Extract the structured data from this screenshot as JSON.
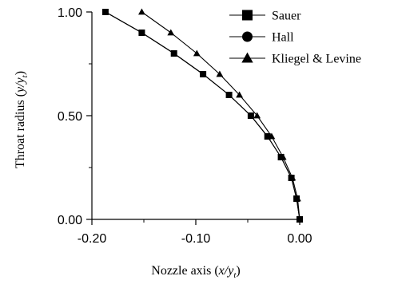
{
  "chart_data": {
    "type": "line",
    "xlabel": {
      "text": "Nozzle axis (",
      "math": "x/y",
      "sub": "t",
      "tail": ")"
    },
    "ylabel": {
      "text": "Throat radius (",
      "math": "y/y",
      "sub": "t",
      "tail": ")"
    },
    "xlim": [
      -0.2,
      0.0
    ],
    "ylim": [
      0.0,
      1.0
    ],
    "xticks": [
      -0.2,
      -0.1,
      0.0
    ],
    "xtick_labels": [
      "-0.20",
      "-0.10",
      "0.00"
    ],
    "yticks": [
      0.0,
      0.5,
      1.0
    ],
    "ytick_labels": [
      "0.00",
      "0.50",
      "1.00"
    ],
    "legend_position": "top-right",
    "grid": false,
    "series": [
      {
        "name": "Sauer",
        "marker": "square",
        "x": [
          -0.187,
          -0.152,
          -0.121,
          -0.093,
          -0.068,
          -0.047,
          -0.031,
          -0.018,
          -0.008,
          -0.003,
          0.0
        ],
        "y": [
          1.0,
          0.9,
          0.8,
          0.7,
          0.6,
          0.5,
          0.4,
          0.3,
          0.2,
          0.1,
          0.0
        ]
      },
      {
        "name": "Hall",
        "marker": "circle",
        "x": [
          -0.187,
          -0.152,
          -0.121,
          -0.093,
          -0.068,
          -0.047,
          -0.031,
          -0.018,
          -0.008,
          -0.003,
          0.0
        ],
        "y": [
          1.0,
          0.9,
          0.8,
          0.7,
          0.6,
          0.5,
          0.4,
          0.3,
          0.2,
          0.1,
          0.0
        ]
      },
      {
        "name": "Kliegel & Levine",
        "marker": "triangle",
        "x": [
          -0.152,
          -0.124,
          -0.099,
          -0.077,
          -0.058,
          -0.041,
          -0.027,
          -0.016,
          -0.007,
          -0.002,
          0.0
        ],
        "y": [
          1.0,
          0.9,
          0.8,
          0.7,
          0.6,
          0.5,
          0.4,
          0.3,
          0.2,
          0.1,
          0.0
        ]
      }
    ]
  }
}
